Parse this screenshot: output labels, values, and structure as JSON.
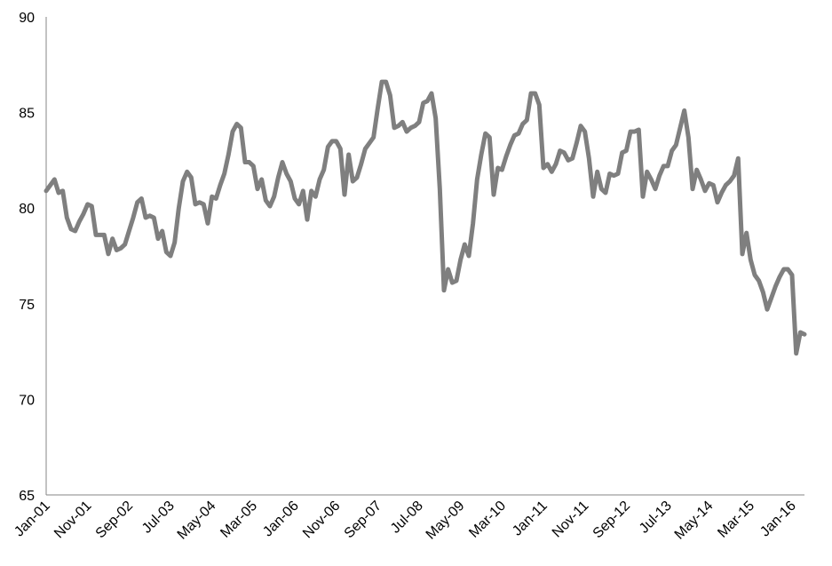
{
  "chart_data": {
    "type": "line",
    "title": "",
    "xlabel": "",
    "ylabel": "",
    "ylim": [
      65,
      90
    ],
    "y_ticks": [
      "65",
      "70",
      "75",
      "80",
      "85",
      "90"
    ],
    "x_tick_labels": [
      "Jan-01",
      "Nov-01",
      "Sep-02",
      "Jul-03",
      "May-04",
      "Mar-05",
      "Jan-06",
      "Nov-06",
      "Sep-07",
      "Jul-08",
      "May-09",
      "Mar-10",
      "Jan-11",
      "Nov-11",
      "Sep-12",
      "Jul-13",
      "May-14",
      "Mar-15",
      "Jan-16"
    ],
    "grid": false,
    "legend": "none",
    "series_color": "#7f7f7f",
    "x_start": "2001-01",
    "series": [
      {
        "values": [
          80.9,
          81.2,
          81.5,
          80.8,
          80.9,
          79.5,
          78.9,
          78.8,
          79.3,
          79.7,
          80.2,
          80.1,
          78.6,
          78.6,
          78.6,
          77.6,
          78.4,
          77.8,
          77.9,
          78.1,
          78.8,
          79.5,
          80.3,
          80.5,
          79.5,
          79.6,
          79.5,
          78.4,
          78.8,
          77.7,
          77.5,
          78.2,
          80.0,
          81.4,
          81.9,
          81.6,
          80.2,
          80.3,
          80.2,
          79.2,
          80.6,
          80.5,
          81.2,
          81.8,
          82.8,
          84.0,
          84.4,
          84.2,
          82.4,
          82.4,
          82.2,
          81.0,
          81.5,
          80.4,
          80.1,
          80.6,
          81.6,
          82.4,
          81.8,
          81.4,
          80.5,
          80.2,
          80.9,
          79.4,
          80.9,
          80.6,
          81.5,
          82.0,
          83.2,
          83.5,
          83.5,
          83.1,
          80.7,
          82.8,
          81.4,
          81.6,
          82.3,
          83.1,
          83.4,
          83.7,
          85.2,
          86.6,
          86.6,
          85.9,
          84.2,
          84.3,
          84.5,
          84.0,
          84.2,
          84.3,
          84.5,
          85.5,
          85.6,
          86.0,
          84.7,
          81.0,
          75.7,
          76.8,
          76.1,
          76.2,
          77.3,
          78.1,
          77.5,
          79.2,
          81.5,
          82.8,
          83.9,
          83.7,
          80.7,
          82.1,
          82.0,
          82.7,
          83.3,
          83.8,
          83.9,
          84.4,
          84.6,
          86.0,
          86.0,
          85.4,
          82.1,
          82.3,
          81.9,
          82.3,
          83.0,
          82.9,
          82.5,
          82.6,
          83.4,
          84.3,
          84.0,
          82.6,
          80.6,
          81.9,
          81.0,
          80.8,
          81.8,
          81.7,
          81.8,
          82.9,
          83.0,
          84.0,
          84.0,
          84.1,
          80.6,
          81.9,
          81.5,
          81.0,
          81.7,
          82.2,
          82.2,
          83.0,
          83.3,
          84.2,
          85.1,
          83.7,
          81.0,
          82.0,
          81.5,
          80.9,
          81.3,
          81.2,
          80.3,
          80.8,
          81.2,
          81.4,
          81.7,
          82.6,
          77.6,
          78.7,
          77.3,
          76.5,
          76.2,
          75.6,
          74.7,
          75.3,
          75.9,
          76.4,
          76.8,
          76.8,
          76.5,
          72.4,
          73.5,
          73.4
        ]
      }
    ]
  }
}
